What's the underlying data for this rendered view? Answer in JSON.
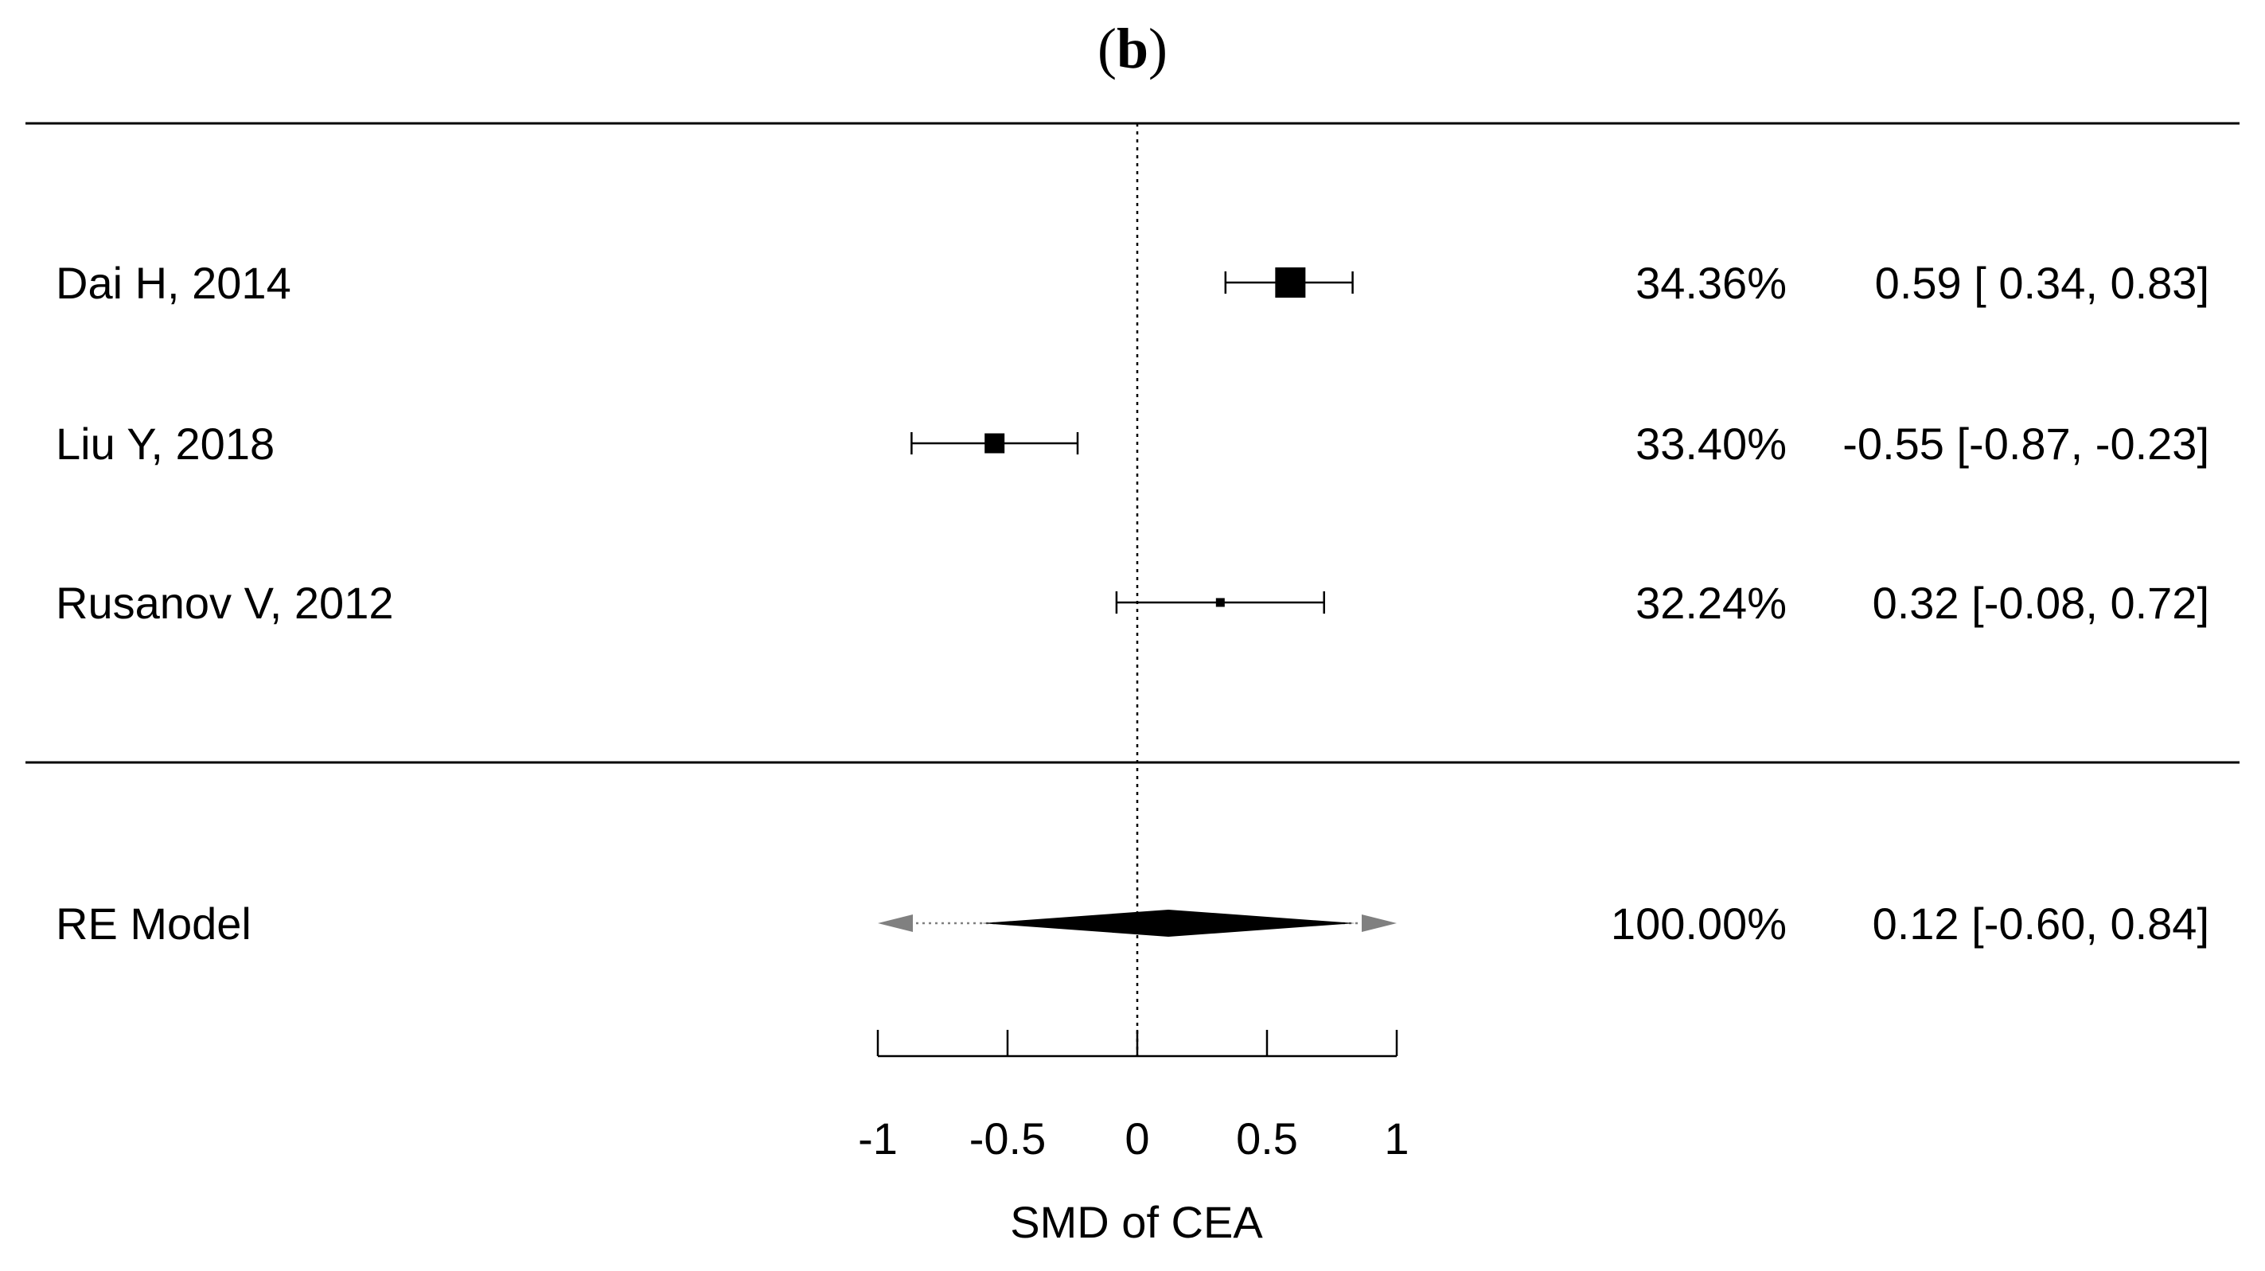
{
  "panel_label": {
    "open": "(",
    "letter": "b",
    "close": ")"
  },
  "colors": {
    "ink": "#000000",
    "pred_interval": "#808080"
  },
  "chart_data": {
    "type": "forest",
    "xlabel": "SMD of CEA",
    "xlim": [
      -1,
      1
    ],
    "xticks": [
      -1,
      -0.5,
      0,
      0.5,
      1
    ],
    "xtick_labels": [
      "-1",
      "-0.5",
      "0",
      "0.5",
      "1"
    ],
    "reference_line": 0,
    "studies": [
      {
        "name": "Dai H, 2014",
        "weight_label": "34.36%",
        "estimate": 0.59,
        "ci": [
          0.34,
          0.83
        ],
        "ci_label": "0.59 [ 0.34,  0.83]",
        "weight": 34.36
      },
      {
        "name": "Liu Y, 2018",
        "weight_label": "33.40%",
        "estimate": -0.55,
        "ci": [
          -0.87,
          -0.23
        ],
        "ci_label": "-0.55 [-0.87, -0.23]",
        "weight": 33.4
      },
      {
        "name": "Rusanov V, 2012",
        "weight_label": "32.24%",
        "estimate": 0.32,
        "ci": [
          -0.08,
          0.72
        ],
        "ci_label": "0.32 [-0.08,  0.72]",
        "weight": 32.24
      }
    ],
    "summary": {
      "name": "RE Model",
      "weight_label": "100.00%",
      "estimate": 0.12,
      "ci": [
        -0.6,
        0.84
      ],
      "ci_label": "0.12 [-0.60,  0.84]",
      "prediction_interval_extends_beyond_axis": true
    }
  }
}
